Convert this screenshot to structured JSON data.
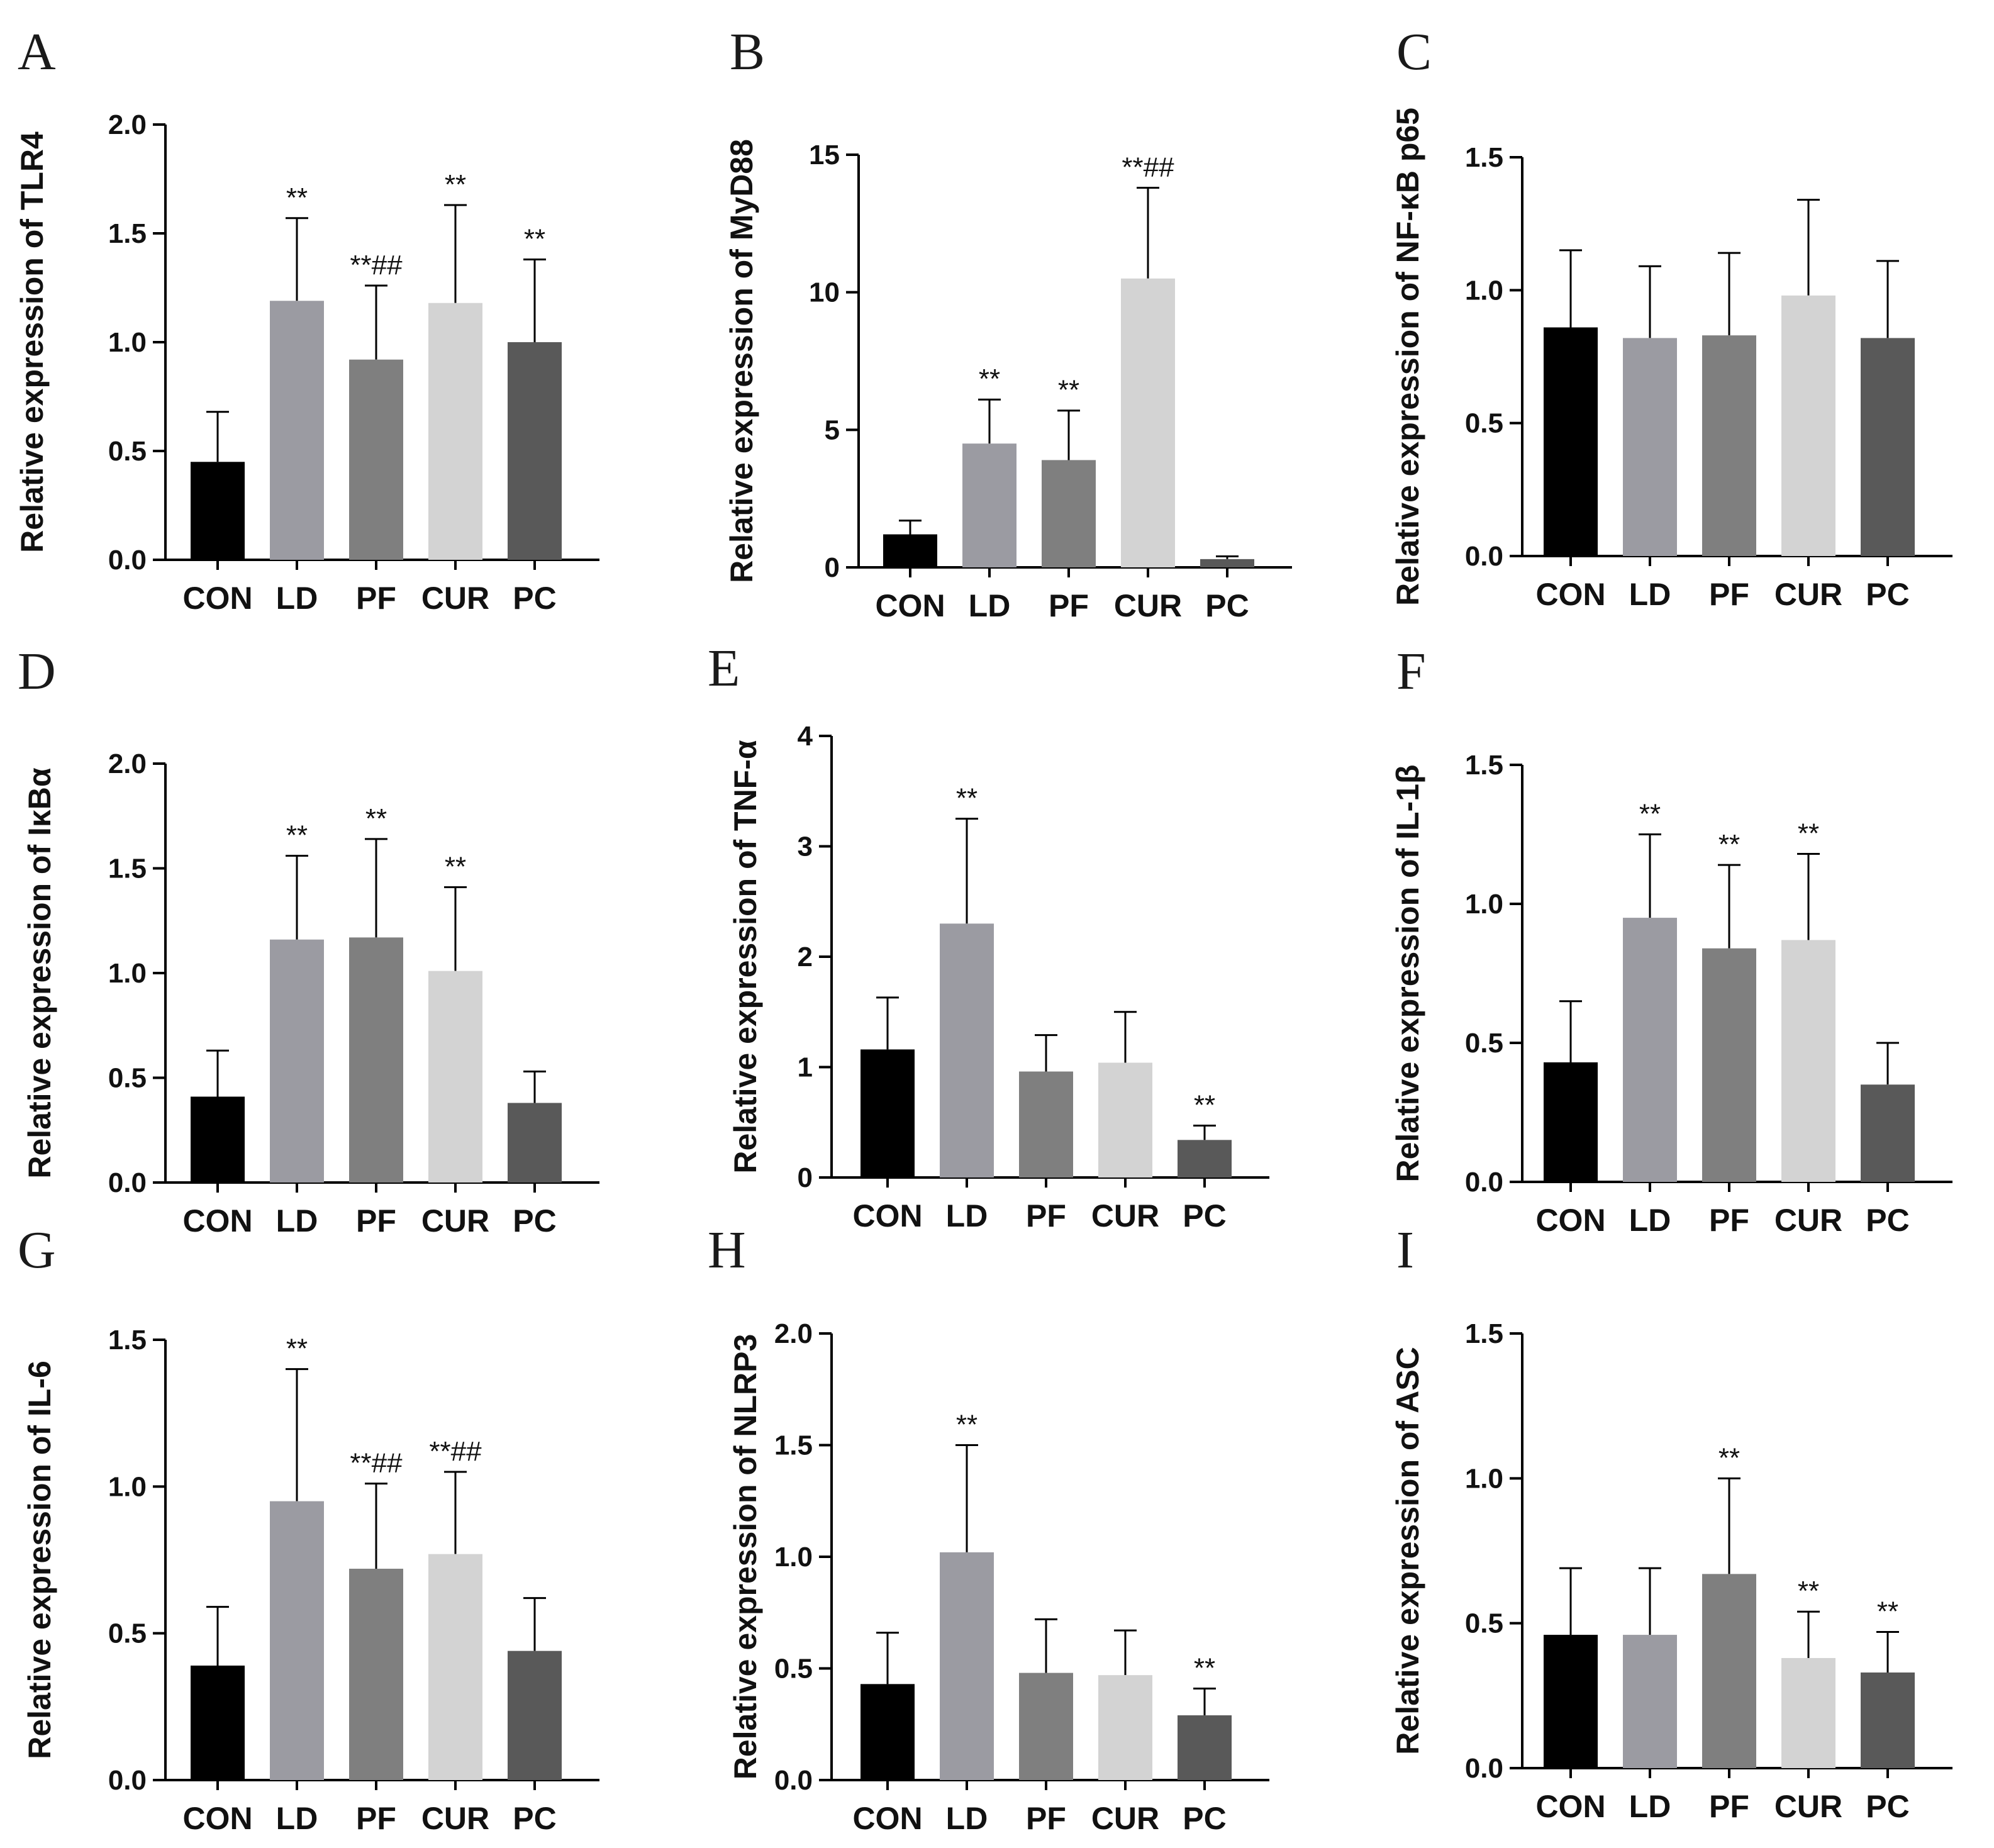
{
  "chart_data": [
    {
      "panel": "A",
      "type": "bar",
      "ylabel": "Relative expression of TLR4",
      "categories": [
        "CON",
        "LD",
        "PF",
        "CUR",
        "PC"
      ],
      "values": [
        0.45,
        1.19,
        0.92,
        1.18,
        1.0
      ],
      "error_upper": [
        0.68,
        1.57,
        1.26,
        1.63,
        1.38
      ],
      "annotations": [
        "",
        "**",
        "**##",
        "**",
        "**"
      ],
      "ylim": [
        0,
        2.0
      ],
      "yticks": [
        "0.0",
        "0.5",
        "1.0",
        "1.5",
        "2.0"
      ]
    },
    {
      "panel": "B",
      "type": "bar",
      "ylabel": "Relative expression of MyD88",
      "categories": [
        "CON",
        "LD",
        "PF",
        "CUR",
        "PC"
      ],
      "values": [
        1.2,
        4.5,
        3.9,
        10.5,
        0.3
      ],
      "error_upper": [
        1.7,
        6.1,
        5.7,
        13.8,
        0.4
      ],
      "annotations": [
        "",
        "**",
        "**",
        "**##",
        ""
      ],
      "ylim": [
        0,
        15
      ],
      "yticks": [
        "0",
        "5",
        "10",
        "15"
      ]
    },
    {
      "panel": "C",
      "type": "bar",
      "ylabel": "Relative expression of NF-κB p65",
      "categories": [
        "CON",
        "LD",
        "PF",
        "CUR",
        "PC"
      ],
      "values": [
        0.86,
        0.82,
        0.83,
        0.98,
        0.82
      ],
      "error_upper": [
        1.15,
        1.09,
        1.14,
        1.34,
        1.11
      ],
      "annotations": [
        "",
        "",
        "",
        "",
        ""
      ],
      "ylim": [
        0,
        1.5
      ],
      "yticks": [
        "0.0",
        "0.5",
        "1.0",
        "1.5"
      ]
    },
    {
      "panel": "D",
      "type": "bar",
      "ylabel": "Relative expression of IκBα",
      "categories": [
        "CON",
        "LD",
        "PF",
        "CUR",
        "PC"
      ],
      "values": [
        0.41,
        1.16,
        1.17,
        1.01,
        0.38
      ],
      "error_upper": [
        0.63,
        1.56,
        1.64,
        1.41,
        0.53
      ],
      "annotations": [
        "",
        "**",
        "**",
        "**",
        ""
      ],
      "ylim": [
        0,
        2.0
      ],
      "yticks": [
        "0.0",
        "0.5",
        "1.0",
        "1.5",
        "2.0"
      ]
    },
    {
      "panel": "E",
      "type": "bar",
      "ylabel": "Relative expression of TNF-α",
      "categories": [
        "CON",
        "LD",
        "PF",
        "CUR",
        "PC"
      ],
      "values": [
        1.16,
        2.3,
        0.96,
        1.04,
        0.34
      ],
      "error_upper": [
        1.63,
        3.25,
        1.29,
        1.5,
        0.47
      ],
      "annotations": [
        "",
        "**",
        "",
        "",
        "**"
      ],
      "ylim": [
        0,
        4
      ],
      "yticks": [
        "0",
        "1",
        "2",
        "3",
        "4"
      ]
    },
    {
      "panel": "F",
      "type": "bar",
      "ylabel": "Relative expression of IL-1β",
      "categories": [
        "CON",
        "LD",
        "PF",
        "CUR",
        "PC"
      ],
      "values": [
        0.43,
        0.95,
        0.84,
        0.87,
        0.35
      ],
      "error_upper": [
        0.65,
        1.25,
        1.14,
        1.18,
        0.5
      ],
      "annotations": [
        "",
        "**",
        "**",
        "**",
        ""
      ],
      "ylim": [
        0,
        1.5
      ],
      "yticks": [
        "0.0",
        "0.5",
        "1.0",
        "1.5"
      ]
    },
    {
      "panel": "G",
      "type": "bar",
      "ylabel": "Relative expression of IL-6",
      "categories": [
        "CON",
        "LD",
        "PF",
        "CUR",
        "PC"
      ],
      "values": [
        0.39,
        0.95,
        0.72,
        0.77,
        0.44
      ],
      "error_upper": [
        0.59,
        1.4,
        1.01,
        1.05,
        0.62
      ],
      "annotations": [
        "",
        "**",
        "**##",
        "**##",
        ""
      ],
      "ylim": [
        0,
        1.5
      ],
      "yticks": [
        "0.0",
        "0.5",
        "1.0",
        "1.5"
      ]
    },
    {
      "panel": "H",
      "type": "bar",
      "ylabel": "Relative expression of NLRP3",
      "categories": [
        "CON",
        "LD",
        "PF",
        "CUR",
        "PC"
      ],
      "values": [
        0.43,
        1.02,
        0.48,
        0.47,
        0.29
      ],
      "error_upper": [
        0.66,
        1.5,
        0.72,
        0.67,
        0.41
      ],
      "annotations": [
        "",
        "**",
        "",
        "",
        "**"
      ],
      "ylim": [
        0,
        2.0
      ],
      "yticks": [
        "0.0",
        "0.5",
        "1.0",
        "1.5",
        "2.0"
      ]
    },
    {
      "panel": "I",
      "type": "bar",
      "ylabel": "Relative expression of ASC",
      "categories": [
        "CON",
        "LD",
        "PF",
        "CUR",
        "PC"
      ],
      "values": [
        0.46,
        0.46,
        0.67,
        0.38,
        0.33
      ],
      "error_upper": [
        0.69,
        0.69,
        1.0,
        0.54,
        0.47
      ],
      "annotations": [
        "",
        "",
        "**",
        "**",
        "**"
      ],
      "ylim": [
        0,
        1.5
      ],
      "yticks": [
        "0.0",
        "0.5",
        "1.0",
        "1.5"
      ]
    }
  ],
  "bar_colors": [
    "#000000",
    "#9b9ba2",
    "#7f7f7f",
    "#d3d3d3",
    "#595959"
  ]
}
